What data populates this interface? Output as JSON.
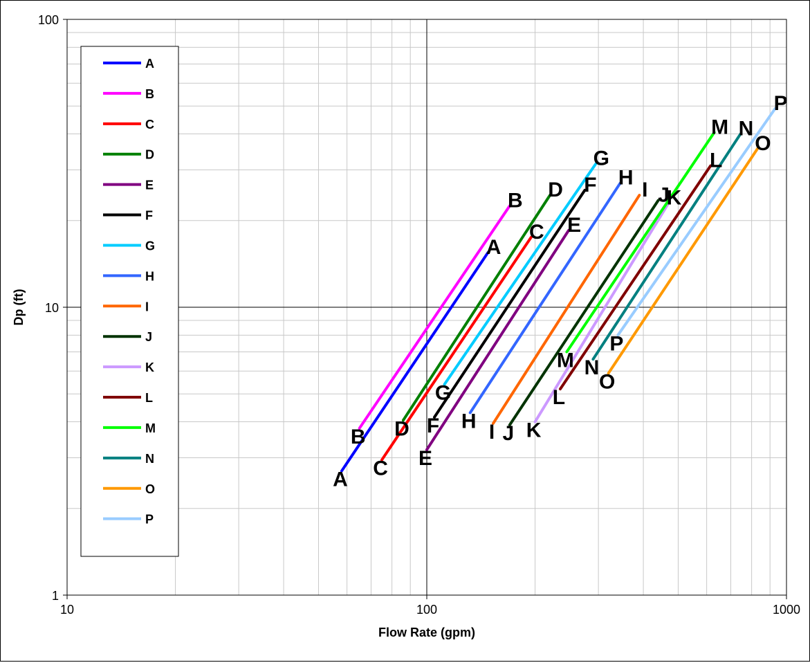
{
  "chart_data": {
    "type": "line",
    "xscale": "log",
    "yscale": "log",
    "xlabel": "Flow Rate (gpm)",
    "ylabel": "Dp (ft)",
    "xlim": [
      10,
      1000
    ],
    "ylim": [
      1,
      100
    ],
    "xticks": [
      "10",
      "100",
      "1000"
    ],
    "yticks": [
      "1",
      "10",
      "100"
    ],
    "grid": true,
    "legend_position": "left",
    "series": [
      {
        "name": "A",
        "color": "#0000ff",
        "x": [
          58,
          148
        ],
        "y": [
          2.7,
          15.5
        ],
        "label_start": "A",
        "label_end": "A"
      },
      {
        "name": "B",
        "color": "#ff00ff",
        "x": [
          65,
          170
        ],
        "y": [
          3.8,
          22.5
        ],
        "label_start": "B",
        "label_end": "B"
      },
      {
        "name": "C",
        "color": "#ff0000",
        "x": [
          75,
          195
        ],
        "y": [
          2.95,
          17.5
        ],
        "label_start": "C",
        "label_end": "C"
      },
      {
        "name": "D",
        "color": "#008000",
        "x": [
          86,
          220
        ],
        "y": [
          4.05,
          24.5
        ],
        "label_start": "D",
        "label_end": "D"
      },
      {
        "name": "E",
        "color": "#800080",
        "x": [
          100,
          248
        ],
        "y": [
          3.2,
          18.5
        ],
        "label_start": "E",
        "label_end": "E"
      },
      {
        "name": "F",
        "color": "#000000",
        "x": [
          105,
          275
        ],
        "y": [
          4.15,
          25.5
        ],
        "label_start": "F",
        "label_end": "F"
      },
      {
        "name": "G",
        "color": "#00ccff",
        "x": [
          112,
          295
        ],
        "y": [
          5.4,
          31.5
        ],
        "label_start": "G",
        "label_end": "G"
      },
      {
        "name": "H",
        "color": "#3366ff",
        "x": [
          132,
          345
        ],
        "y": [
          4.3,
          27.0
        ],
        "label_start": "H",
        "label_end": "H"
      },
      {
        "name": "I",
        "color": "#ff6600",
        "x": [
          153,
          390
        ],
        "y": [
          3.95,
          24.5
        ],
        "label_start": "I",
        "label_end": "I"
      },
      {
        "name": "J",
        "color": "#003300",
        "x": [
          170,
          440
        ],
        "y": [
          3.9,
          23.5
        ],
        "label_start": "J",
        "label_end": "J"
      },
      {
        "name": "K",
        "color": "#cc99ff",
        "x": [
          200,
          470
        ],
        "y": [
          4.0,
          23.0
        ],
        "label_start": "K",
        "label_end": "K"
      },
      {
        "name": "L",
        "color": "#800000",
        "x": [
          235,
          615
        ],
        "y": [
          5.2,
          31.0
        ],
        "label_start": "L",
        "label_end": "L"
      },
      {
        "name": "M",
        "color": "#00ff00",
        "x": [
          245,
          630
        ],
        "y": [
          7.0,
          40.5
        ],
        "label_start": "M",
        "label_end": "M"
      },
      {
        "name": "N",
        "color": "#008080",
        "x": [
          290,
          745
        ],
        "y": [
          6.6,
          40.0
        ],
        "label_start": "N",
        "label_end": "N"
      },
      {
        "name": "O",
        "color": "#ff9900",
        "x": [
          320,
          830
        ],
        "y": [
          5.9,
          35.5
        ],
        "label_start": "O",
        "label_end": "O"
      },
      {
        "name": "P",
        "color": "#99ccff",
        "x": [
          340,
          930
        ],
        "y": [
          8.0,
          49.0
        ],
        "label_start": "P",
        "label_end": "P"
      }
    ]
  }
}
